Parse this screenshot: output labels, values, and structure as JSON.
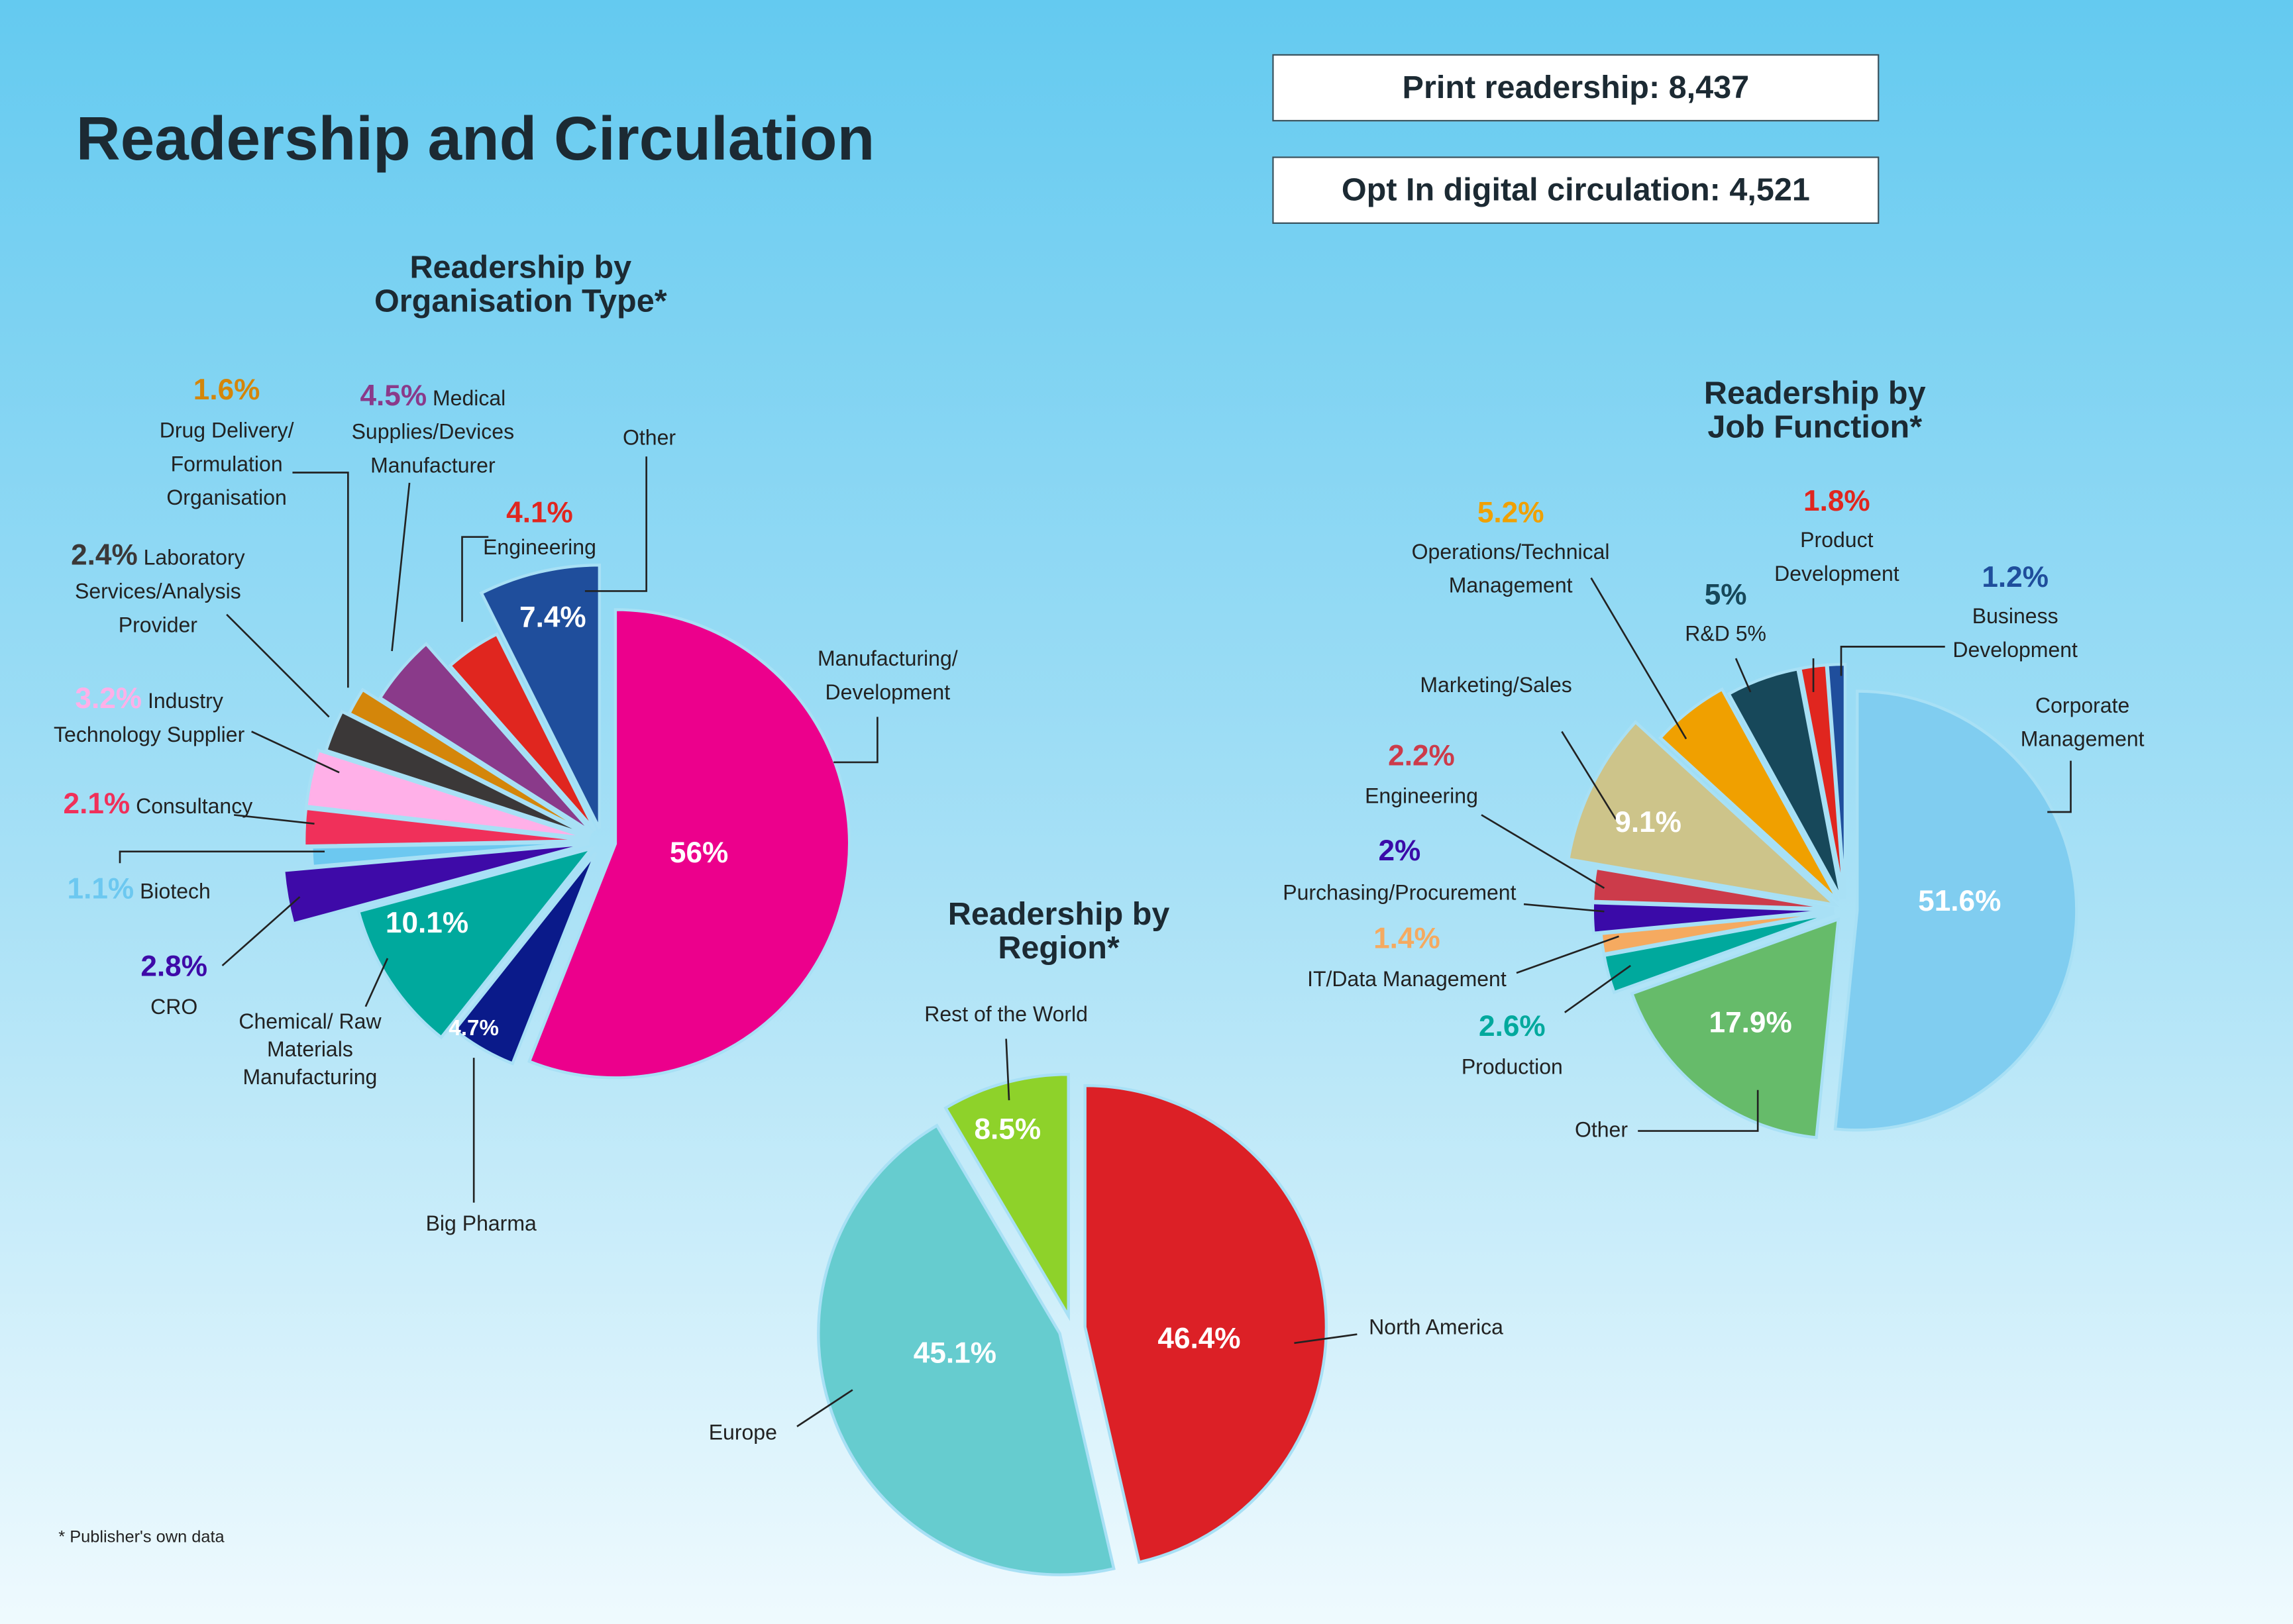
{
  "title": "Readership and Circulation",
  "stats": {
    "print": "Print readership: 8,437",
    "digital": "Opt In digital circulation: 4,521"
  },
  "footnote": "* Publisher's own data",
  "chart_data": [
    {
      "type": "pie",
      "title": [
        "Readership by",
        "Organisation Type*"
      ],
      "slices": [
        {
          "label": "Manufacturing/ Development",
          "value": 56,
          "pct": "56%",
          "color": "#ec008c"
        },
        {
          "label": "Big Pharma",
          "value": 4.7,
          "pct": "4.7%",
          "color": "#0a1a8a"
        },
        {
          "label": "Chemical/ Raw Materials Manufacturing",
          "value": 10.1,
          "pct": "10.1%",
          "color": "#00a99d"
        },
        {
          "label": "CRO",
          "value": 2.8,
          "pct": "2.8%",
          "color": "#3e0aa8"
        },
        {
          "label": "Biotech",
          "value": 1.1,
          "pct": "1.1%",
          "color": "#6cc8f0"
        },
        {
          "label": "Consultancy",
          "value": 2.1,
          "pct": "2.1%",
          "color": "#f0305a"
        },
        {
          "label": "Industry Technology Supplier",
          "value": 3.2,
          "pct": "3.2%",
          "color": "#ffb0e8"
        },
        {
          "label": "Laboratory Services/Analysis Provider",
          "value": 2.4,
          "pct": "2.4%",
          "color": "#3b3838"
        },
        {
          "label": "Drug Delivery/ Formulation Organisation",
          "value": 1.6,
          "pct": "1.6%",
          "color": "#d4860a"
        },
        {
          "label": "Medical Supplies/Devices Manufacturer",
          "value": 4.5,
          "pct": "4.5%",
          "color": "#8a3a8a"
        },
        {
          "label": "Engineering",
          "value": 4.1,
          "pct": "4.1%",
          "color": "#e0261f"
        },
        {
          "label": "Other",
          "value": 7.4,
          "pct": "7.4%",
          "color": "#1f4e9c"
        }
      ]
    },
    {
      "type": "pie",
      "title": [
        "Readership by",
        "Job Function*"
      ],
      "slices": [
        {
          "label": "Corporate Management",
          "value": 51.6,
          "pct": "51.6%",
          "color": "#80cdf0"
        },
        {
          "label": "Other",
          "value": 17.9,
          "pct": "17.9%",
          "color": "#66bb6a"
        },
        {
          "label": "Production",
          "value": 2.6,
          "pct": "2.6%",
          "color": "#00a99d"
        },
        {
          "label": "IT/Data Management",
          "value": 1.4,
          "pct": "1.4%",
          "color": "#f5aa60"
        },
        {
          "label": "Purchasing/Procurement",
          "value": 2,
          "pct": "2%",
          "color": "#3a0aa8"
        },
        {
          "label": "Engineering",
          "value": 2.2,
          "pct": "2.2%",
          "color": "#cc3b4a"
        },
        {
          "label": "Marketing/Sales",
          "value": 9.1,
          "pct": "9.1%",
          "color": "#cdc48a"
        },
        {
          "label": "Operations/Technical Management",
          "value": 5.2,
          "pct": "5.2%",
          "color": "#f0a000"
        },
        {
          "label": "R&D 5%",
          "value": 5,
          "pct": "5%",
          "color": "#17485a"
        },
        {
          "label": "Product Development",
          "value": 1.8,
          "pct": "1.8%",
          "color": "#e0261f"
        },
        {
          "label": "Business Development",
          "value": 1.2,
          "pct": "1.2%",
          "color": "#1f4e9c"
        }
      ]
    },
    {
      "type": "pie",
      "title": [
        "Readership by",
        "Region*"
      ],
      "slices": [
        {
          "label": "North America",
          "value": 46.4,
          "pct": "46.4%",
          "color": "#dc2026"
        },
        {
          "label": "Europe",
          "value": 45.1,
          "pct": "45.1%",
          "color": "#66cccf"
        },
        {
          "label": "Rest of the World",
          "value": 8.5,
          "pct": "8.5%",
          "color": "#8ed22a"
        }
      ]
    }
  ]
}
